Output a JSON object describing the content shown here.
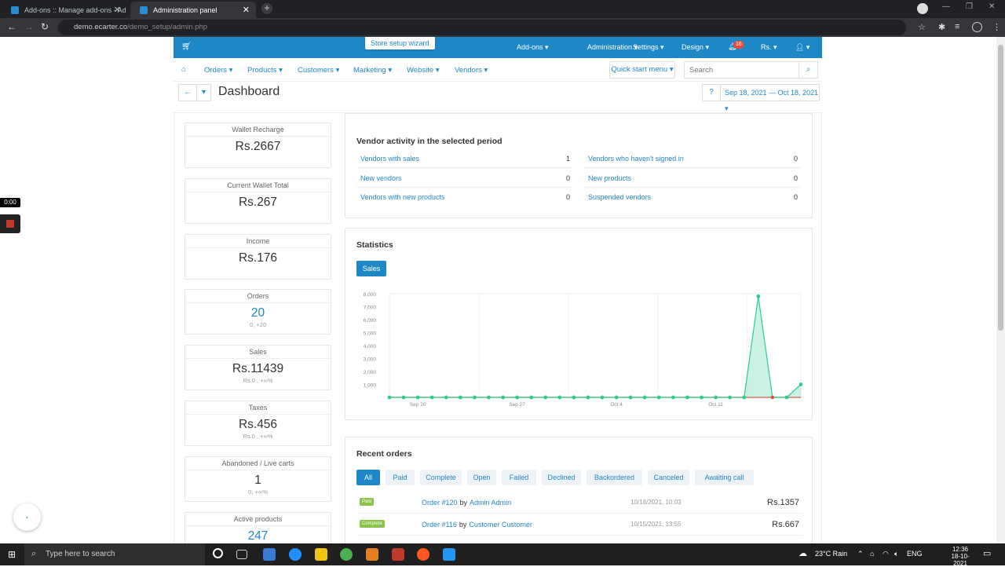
{
  "browser": {
    "tabs": [
      {
        "title": "Add-ons :: Manage add-ons - Ad"
      },
      {
        "title": "Administration panel"
      }
    ],
    "url_host": "demo.ecarter.co",
    "url_path": "/demo_setup/admin.php"
  },
  "topbar": {
    "wizard": "Store setup wizard",
    "menus": [
      "Add-ons",
      "Administration",
      "Settings",
      "Design"
    ],
    "notifications": "16",
    "currency": "Rs."
  },
  "mainnav": {
    "items": [
      "Orders",
      "Products",
      "Customers",
      "Marketing",
      "Website",
      "Vendors"
    ],
    "quick_start": "Quick start menu",
    "search_placeholder": "Search"
  },
  "title": "Dashboard",
  "date_range": "Sep 18, 2021 — Oct 18, 2021",
  "cards": [
    {
      "title": "Wallet Recharge",
      "value": "Rs.2667",
      "sub": ""
    },
    {
      "title": "Current Wallet Total",
      "value": "Rs.267",
      "sub": ""
    },
    {
      "title": "Income",
      "value": "Rs.176",
      "sub": ""
    },
    {
      "title": "Orders",
      "value": "20",
      "sub": "0, +20"
    },
    {
      "title": "Sales",
      "value": "Rs.11439",
      "sub": "Rs.0 , +∞%"
    },
    {
      "title": "Taxes",
      "value": "Rs.456",
      "sub": "Rs.0 , +∞%"
    },
    {
      "title": "Abandoned / Live carts",
      "value": "1",
      "sub": "0, +∞%"
    },
    {
      "title": "Active products",
      "value": "247",
      "sub": ""
    }
  ],
  "vendor_activity": {
    "title": "Vendor activity in the selected period",
    "left": [
      {
        "label": "Vendors with sales",
        "value": "1"
      },
      {
        "label": "New vendors",
        "value": "0"
      },
      {
        "label": "Vendors with new products",
        "value": "0"
      }
    ],
    "right": [
      {
        "label": "Vendors who haven't signed in",
        "value": "0"
      },
      {
        "label": "New products",
        "value": "0"
      },
      {
        "label": "Suspended vendors",
        "value": "0"
      }
    ]
  },
  "statistics": {
    "title": "Statistics",
    "tab": "Sales"
  },
  "chart_data": {
    "type": "area",
    "x_ticks": [
      "Sep 20",
      "Sep 27",
      "Oct 4",
      "Oct 11"
    ],
    "y_ticks": [
      "1,000",
      "2,000",
      "3,000",
      "4,000",
      "5,000",
      "6,000",
      "7,000",
      "8,000"
    ],
    "ylim": [
      0,
      8000
    ],
    "series": [
      {
        "color": "#2ecc8f",
        "values": [
          0,
          0,
          0,
          0,
          0,
          0,
          0,
          0,
          0,
          0,
          0,
          0,
          0,
          0,
          0,
          0,
          0,
          0,
          0,
          0,
          0,
          0,
          0,
          0,
          0,
          0,
          7800,
          0,
          0,
          1000
        ]
      },
      {
        "color": "#e74c3c",
        "values": [
          0,
          0,
          0,
          0,
          0,
          0,
          0,
          0,
          0,
          0,
          0,
          0,
          0,
          0,
          0,
          0,
          0,
          0,
          0,
          0,
          0,
          0,
          0,
          0,
          0,
          0,
          0,
          0,
          0,
          0
        ]
      }
    ]
  },
  "recent_orders": {
    "title": "Recent orders",
    "filters": [
      "All",
      "Paid",
      "Complete",
      "Open",
      "Failed",
      "Declined",
      "Backordered",
      "Canceled",
      "Awaiting call"
    ],
    "rows": [
      {
        "status": "Paid",
        "status_color": "#8bc34a",
        "order": "Order #120",
        "by": "by",
        "customer": "Admin Admin",
        "date": "10/18/2021, 10:03",
        "amount": "Rs.1357"
      },
      {
        "status": "Complete",
        "status_color": "#8bc34a",
        "order": "Order #116",
        "by": "by",
        "customer": "Customer Customer",
        "date": "10/15/2021, 13:55",
        "amount": "Rs.667"
      }
    ]
  },
  "overlay": {
    "recorder_time": "0:00"
  },
  "taskbar": {
    "search": "Type here to search",
    "weather": "23°C  Rain",
    "lang": "ENG",
    "time": "12:36",
    "date": "18-10-2021"
  }
}
